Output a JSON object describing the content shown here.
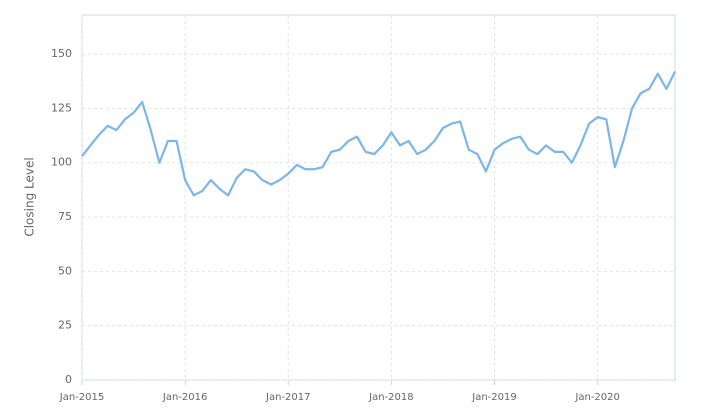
{
  "chart_data": {
    "type": "line",
    "y_label": "Closing Level",
    "x": [
      "2015-01",
      "2015-02",
      "2015-03",
      "2015-04",
      "2015-05",
      "2015-06",
      "2015-07",
      "2015-08",
      "2015-09",
      "2015-10",
      "2015-11",
      "2015-12",
      "2016-01",
      "2016-02",
      "2016-03",
      "2016-04",
      "2016-05",
      "2016-06",
      "2016-07",
      "2016-08",
      "2016-09",
      "2016-10",
      "2016-11",
      "2016-12",
      "2017-01",
      "2017-02",
      "2017-03",
      "2017-04",
      "2017-05",
      "2017-06",
      "2017-07",
      "2017-08",
      "2017-09",
      "2017-10",
      "2017-11",
      "2017-12",
      "2018-01",
      "2018-02",
      "2018-03",
      "2018-04",
      "2018-05",
      "2018-06",
      "2018-07",
      "2018-08",
      "2018-09",
      "2018-10",
      "2018-11",
      "2018-12",
      "2019-01",
      "2019-02",
      "2019-03",
      "2019-04",
      "2019-05",
      "2019-06",
      "2019-07",
      "2019-08",
      "2019-09",
      "2019-10",
      "2019-11",
      "2019-12",
      "2020-01",
      "2020-02",
      "2020-03",
      "2020-04",
      "2020-05",
      "2020-06",
      "2020-07",
      "2020-08",
      "2020-09",
      "2020-10"
    ],
    "series": [
      {
        "color": "#7cb5ec",
        "values": [
          103,
          108,
          113,
          117,
          115,
          120,
          123,
          128,
          115,
          100,
          110,
          110,
          92,
          85,
          87,
          92,
          88,
          85,
          93,
          97,
          96,
          92,
          90,
          92,
          95,
          99,
          97,
          97,
          98,
          105,
          106,
          110,
          112,
          105,
          104,
          108,
          114,
          108,
          110,
          104,
          106,
          110,
          116,
          118,
          119,
          106,
          104,
          96,
          106,
          109,
          111,
          112,
          106,
          104,
          108,
          105,
          105,
          100,
          108,
          118,
          121,
          120,
          98,
          110,
          125,
          132,
          134,
          141,
          134,
          142
        ]
      }
    ],
    "xlim": [
      "2015-01",
      "2020-10"
    ],
    "xticks": [
      {
        "value": "2015-01",
        "label": "Jan-2015"
      },
      {
        "value": "2016-01",
        "label": "Jan-2016"
      },
      {
        "value": "2017-01",
        "label": "Jan-2017"
      },
      {
        "value": "2018-01",
        "label": "Jan-2018"
      },
      {
        "value": "2019-01",
        "label": "Jan-2019"
      },
      {
        "value": "2020-01",
        "label": "Jan-2020"
      }
    ],
    "ylim": [
      0,
      168
    ],
    "yticks": [
      0,
      25,
      50,
      75,
      100,
      125,
      150
    ],
    "grid": true
  }
}
